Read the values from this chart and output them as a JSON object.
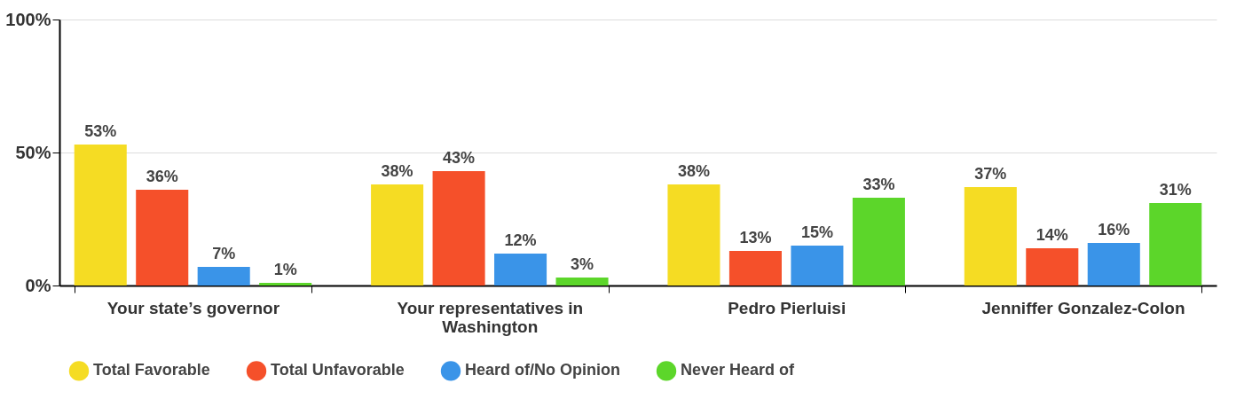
{
  "chart_data": {
    "type": "bar",
    "categories": [
      "Your state’s governor",
      "Your representatives in Washington",
      "Pedro Pierluisi",
      "Jenniffer Gonzalez-Colon"
    ],
    "series": [
      {
        "name": "Total Favorable",
        "color": "#f5dc23",
        "values": [
          53,
          38,
          38,
          37
        ],
        "value_labels": [
          "53%",
          "38%",
          "38%",
          "37%"
        ]
      },
      {
        "name": "Total Unfavorable",
        "color": "#f5502a",
        "values": [
          36,
          43,
          13,
          14
        ],
        "value_labels": [
          "36%",
          "43%",
          "13%",
          "14%"
        ]
      },
      {
        "name": "Heard of/No Opinion",
        "color": "#3a94e8",
        "values": [
          7,
          12,
          15,
          16
        ],
        "value_labels": [
          "7%",
          "12%",
          "15%",
          "16%"
        ]
      },
      {
        "name": "Never Heard of",
        "color": "#5cd62a",
        "values": [
          1,
          3,
          33,
          31
        ],
        "value_labels": [
          "1%",
          "3%",
          "33%",
          "31%"
        ]
      }
    ],
    "ylim": [
      0,
      100
    ],
    "yticks": [
      {
        "value": 0,
        "label": "0%"
      },
      {
        "value": 50,
        "label": "50%"
      },
      {
        "value": 100,
        "label": "100%"
      }
    ],
    "grid": "y",
    "legend": "bottom"
  }
}
